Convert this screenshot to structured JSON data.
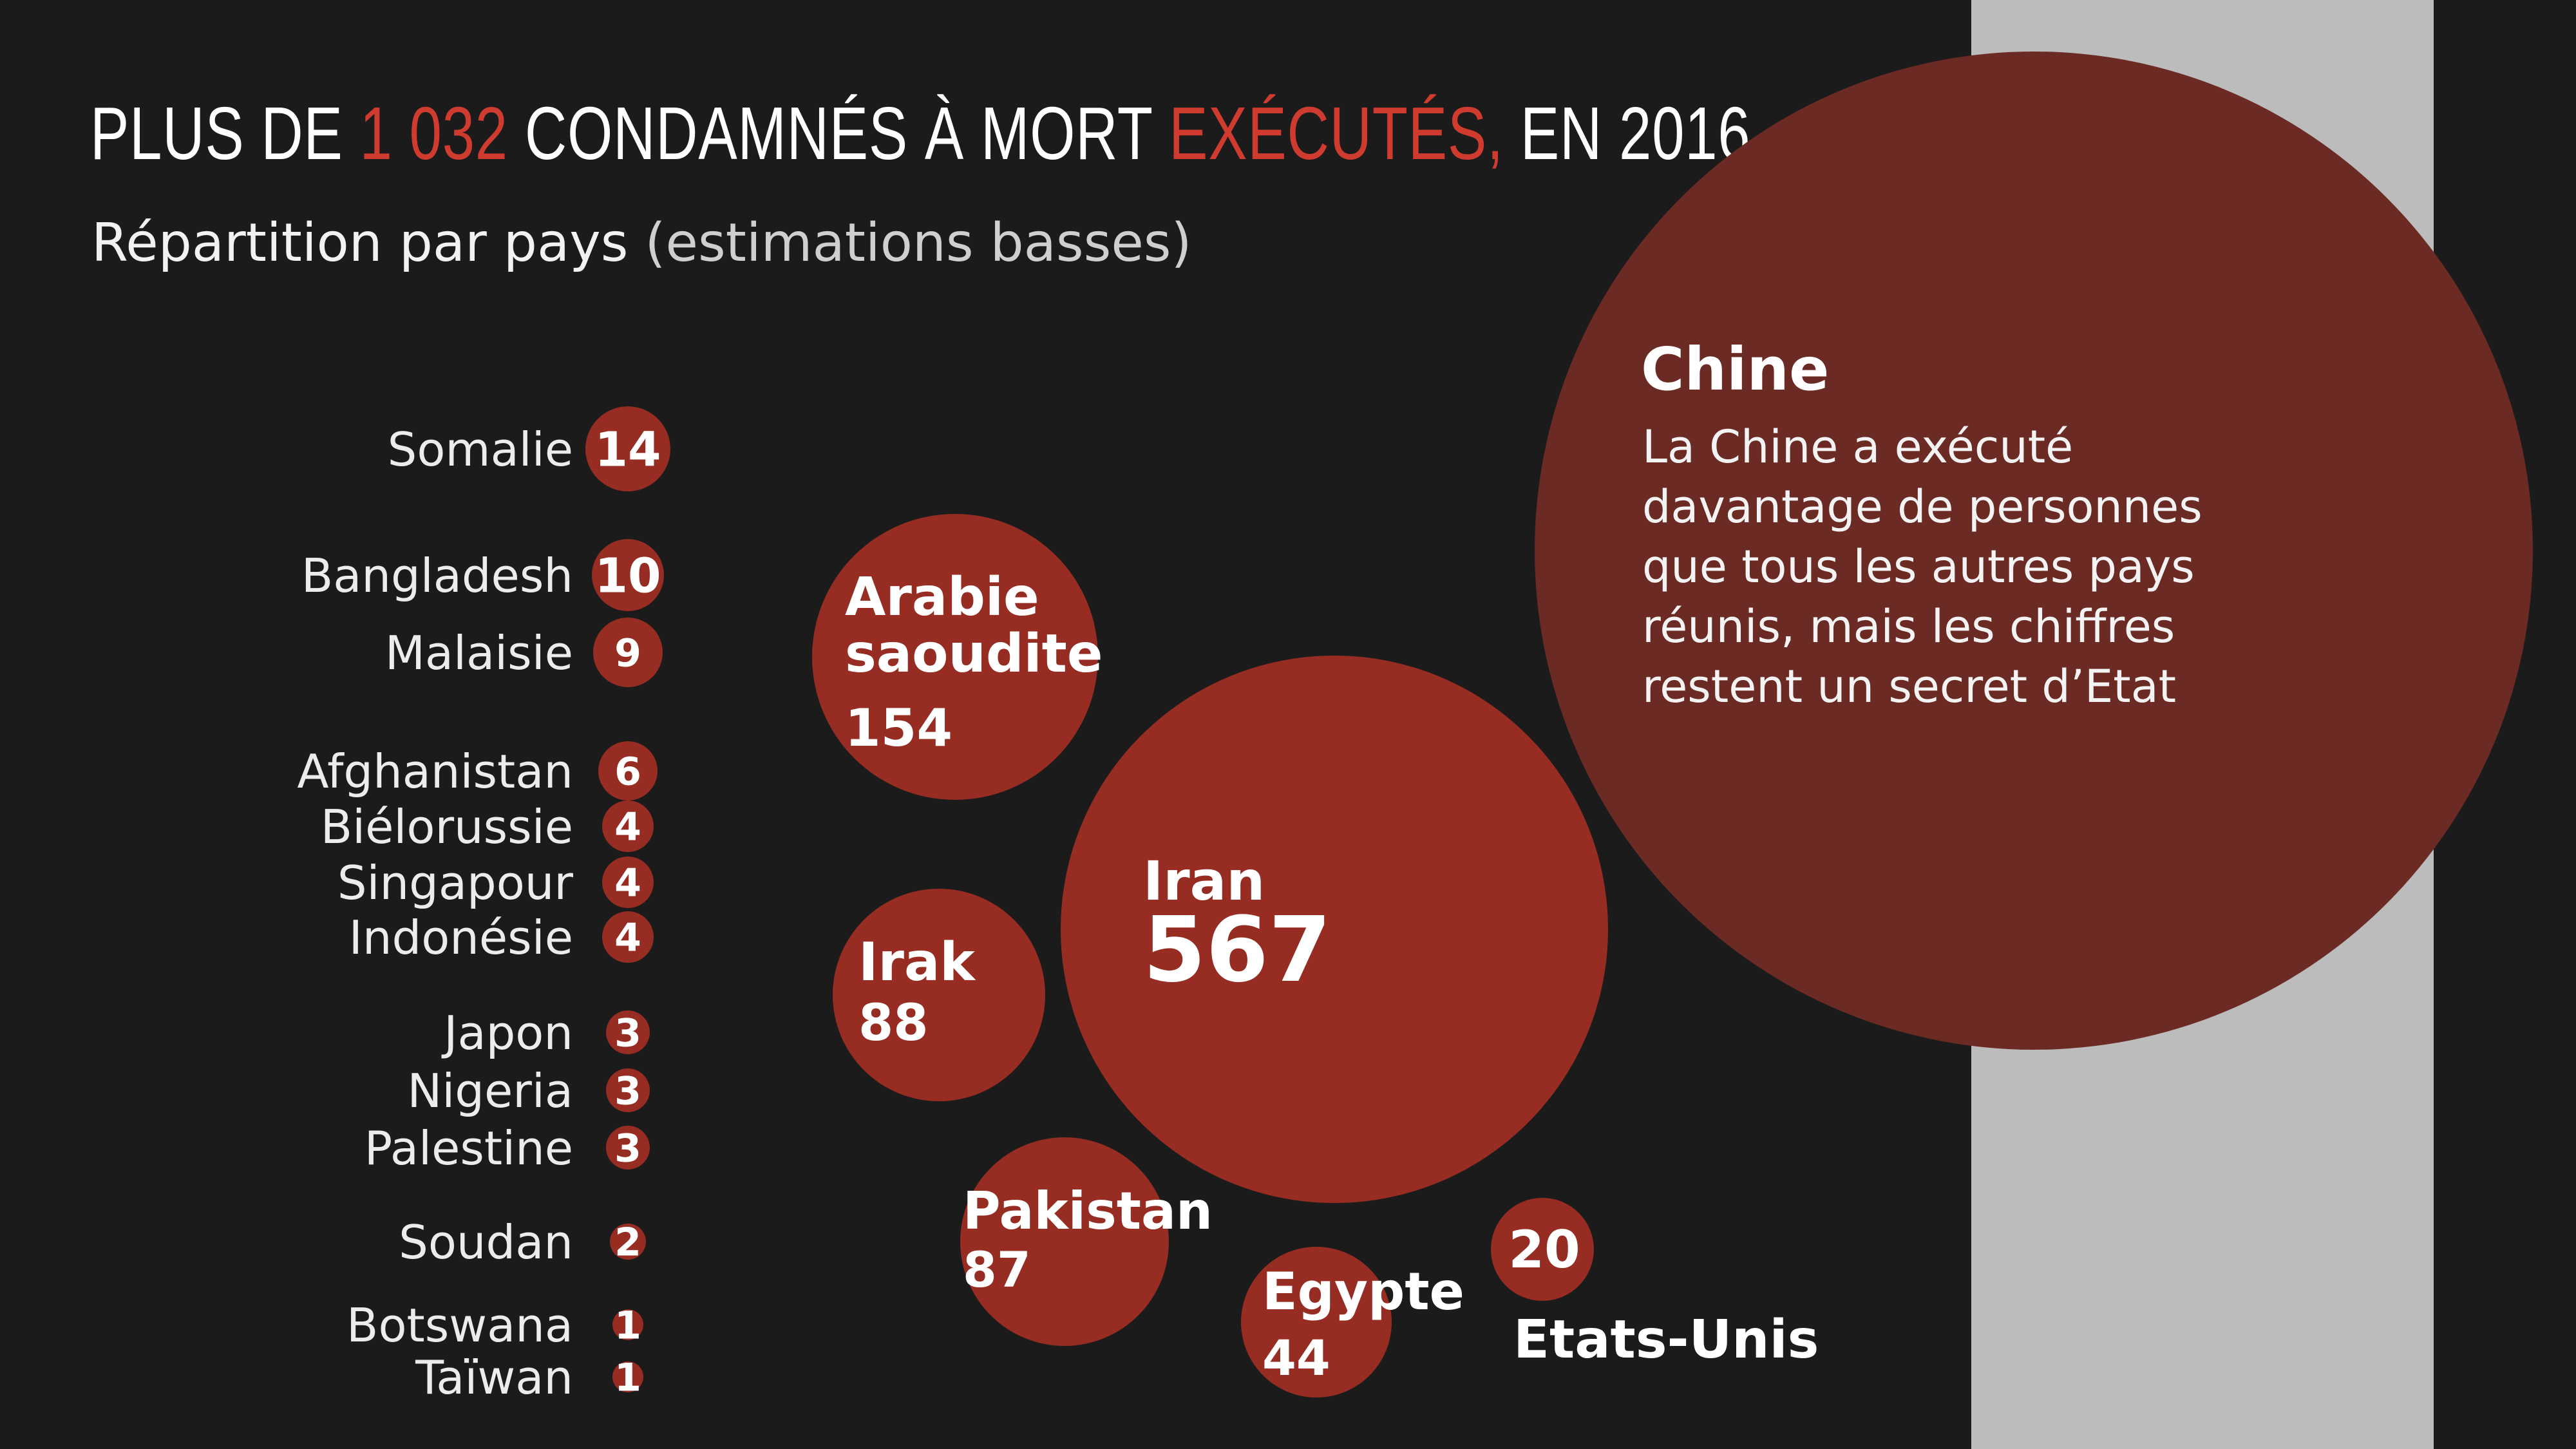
{
  "title": {
    "part1": "PLUS DE ",
    "highlight1": "1 032",
    "part2": " CONDAMNÉS À MORT ",
    "highlight2": "EXÉCUTÉS,",
    "part3": " EN 2016"
  },
  "subtitle": {
    "main": "Répartition par pays",
    "note": "(estimations basses)"
  },
  "colors": {
    "background": "#1b1b1b",
    "bubble": "#962c22",
    "chine_bubble": "#6b2a24",
    "panel": "#bcbcbc",
    "accent": "#d03b2f"
  },
  "chart_data": {
    "type": "bubble",
    "unit": "exécutions",
    "small_countries": [
      {
        "name": "Somalie",
        "value": 14
      },
      {
        "name": "Bangladesh",
        "value": 10
      },
      {
        "name": "Malaisie",
        "value": 9
      },
      {
        "name": "Afghanistan",
        "value": 6
      },
      {
        "name": "Biélorussie",
        "value": 4
      },
      {
        "name": "Singapour",
        "value": 4
      },
      {
        "name": "Indonésie",
        "value": 4
      },
      {
        "name": "Japon",
        "value": 3
      },
      {
        "name": "Nigeria",
        "value": 3
      },
      {
        "name": "Palestine",
        "value": 3
      },
      {
        "name": "Soudan",
        "value": 2
      },
      {
        "name": "Botswana",
        "value": 1
      },
      {
        "name": "Taïwan",
        "value": 1
      }
    ],
    "bubbles": [
      {
        "name_lines": [
          "Arabie",
          "saoudite"
        ],
        "value": 154
      },
      {
        "name_lines": [
          "Iran"
        ],
        "value": 567
      },
      {
        "name_lines": [
          "Irak"
        ],
        "value": 88
      },
      {
        "name_lines": [
          "Pakistan"
        ],
        "value": 87
      },
      {
        "name_lines": [
          "Egypte"
        ],
        "value": 44
      },
      {
        "name_lines": [
          "Etats-Unis"
        ],
        "value": 20
      }
    ],
    "chine": {
      "name": "Chine",
      "description_lines": [
        "La Chine a exécuté",
        "davantage de personnes",
        "que tous les autres pays",
        "réunis, mais les chiffres",
        "restent un secret d’Etat"
      ]
    }
  }
}
